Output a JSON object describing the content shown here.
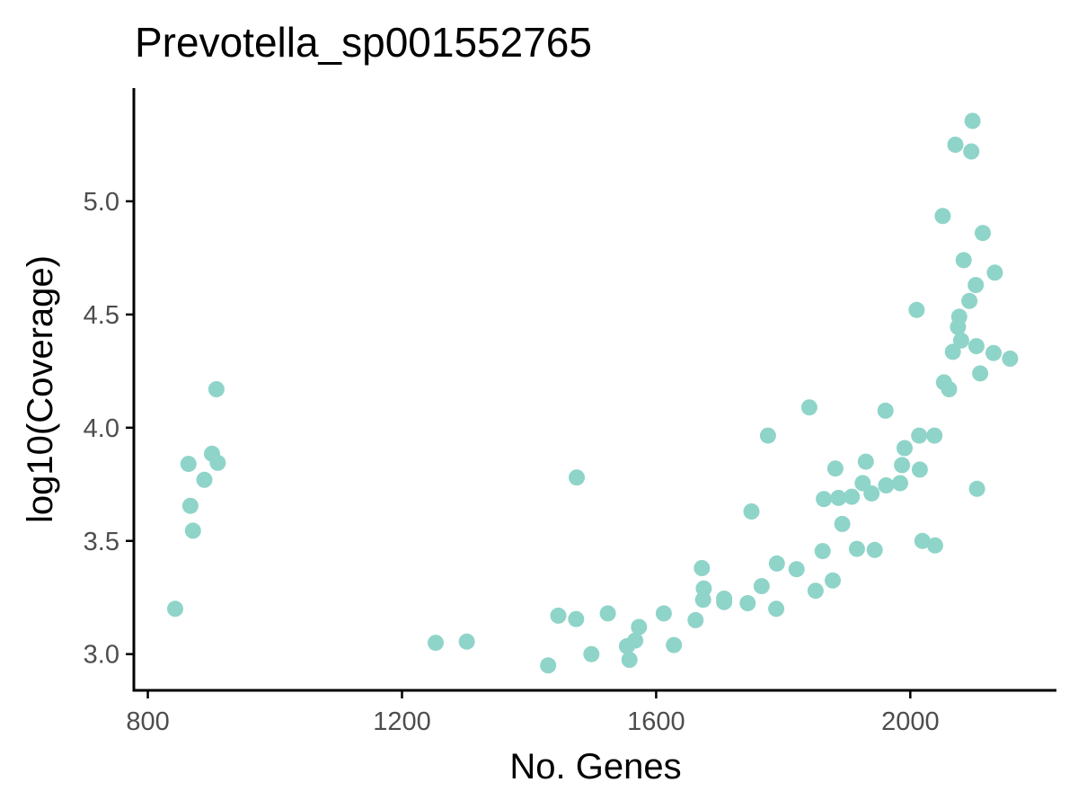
{
  "chart_data": {
    "type": "scatter",
    "title": "Prevotella_sp001552765",
    "xlabel": "No. Genes",
    "ylabel": "log10(Coverage)",
    "xlim": [
      778,
      2230
    ],
    "ylim": [
      2.84,
      5.5
    ],
    "xticks": [
      800,
      1200,
      1600,
      2000
    ],
    "xtick_labels": [
      "800",
      "1200",
      "1600",
      "2000"
    ],
    "yticks": [
      3.0,
      3.5,
      4.0,
      4.5,
      5.0
    ],
    "ytick_labels": [
      "3.0",
      "3.5",
      "4.0",
      "4.5",
      "5.0"
    ],
    "grid": false,
    "legend": "none",
    "point_color": "#8fd4c8",
    "axis_color": "#000000",
    "tick_label_color": "#4d4d4d",
    "x": [
      843,
      864,
      867,
      871,
      889,
      901,
      908,
      910,
      1253,
      1302,
      1430,
      1446,
      1474,
      1475,
      1498,
      1524,
      1554,
      1558,
      1567,
      1573,
      1612,
      1628,
      1662,
      1672,
      1674,
      1675,
      1707,
      1707,
      1744,
      1750,
      1766,
      1776,
      1789,
      1790,
      1821,
      1841,
      1851,
      1862,
      1864,
      1878,
      1882,
      1887,
      1893,
      1908,
      1916,
      1925,
      1930,
      1939,
      1944,
      1961,
      1962,
      1984,
      1987,
      1991,
      2010,
      2014,
      2015,
      2019,
      2038,
      2039,
      2051,
      2053,
      2061,
      2067,
      2071,
      2075,
      2077,
      2080,
      2084,
      2093,
      2096,
      2098,
      2103,
      2104,
      2105,
      2110,
      2114,
      2131,
      2133,
      2157
    ],
    "y": [
      3.2,
      3.84,
      3.655,
      3.545,
      3.77,
      3.885,
      4.17,
      3.845,
      3.05,
      3.055,
      2.95,
      3.17,
      3.155,
      3.78,
      3.0,
      3.18,
      3.035,
      2.975,
      3.06,
      3.12,
      3.18,
      3.04,
      3.15,
      3.38,
      3.24,
      3.29,
      3.245,
      3.23,
      3.225,
      3.63,
      3.3,
      3.965,
      3.2,
      3.4,
      3.375,
      4.09,
      3.28,
      3.455,
      3.685,
      3.325,
      3.82,
      3.69,
      3.575,
      3.695,
      3.465,
      3.755,
      3.85,
      3.71,
      3.46,
      4.075,
      3.745,
      3.755,
      3.835,
      3.91,
      4.52,
      3.965,
      3.815,
      3.5,
      3.965,
      3.48,
      4.935,
      4.2,
      4.17,
      4.335,
      5.25,
      4.445,
      4.49,
      4.385,
      4.74,
      4.56,
      5.22,
      5.355,
      4.63,
      4.36,
      3.73,
      4.24,
      4.86,
      4.33,
      4.685,
      4.305
    ]
  }
}
